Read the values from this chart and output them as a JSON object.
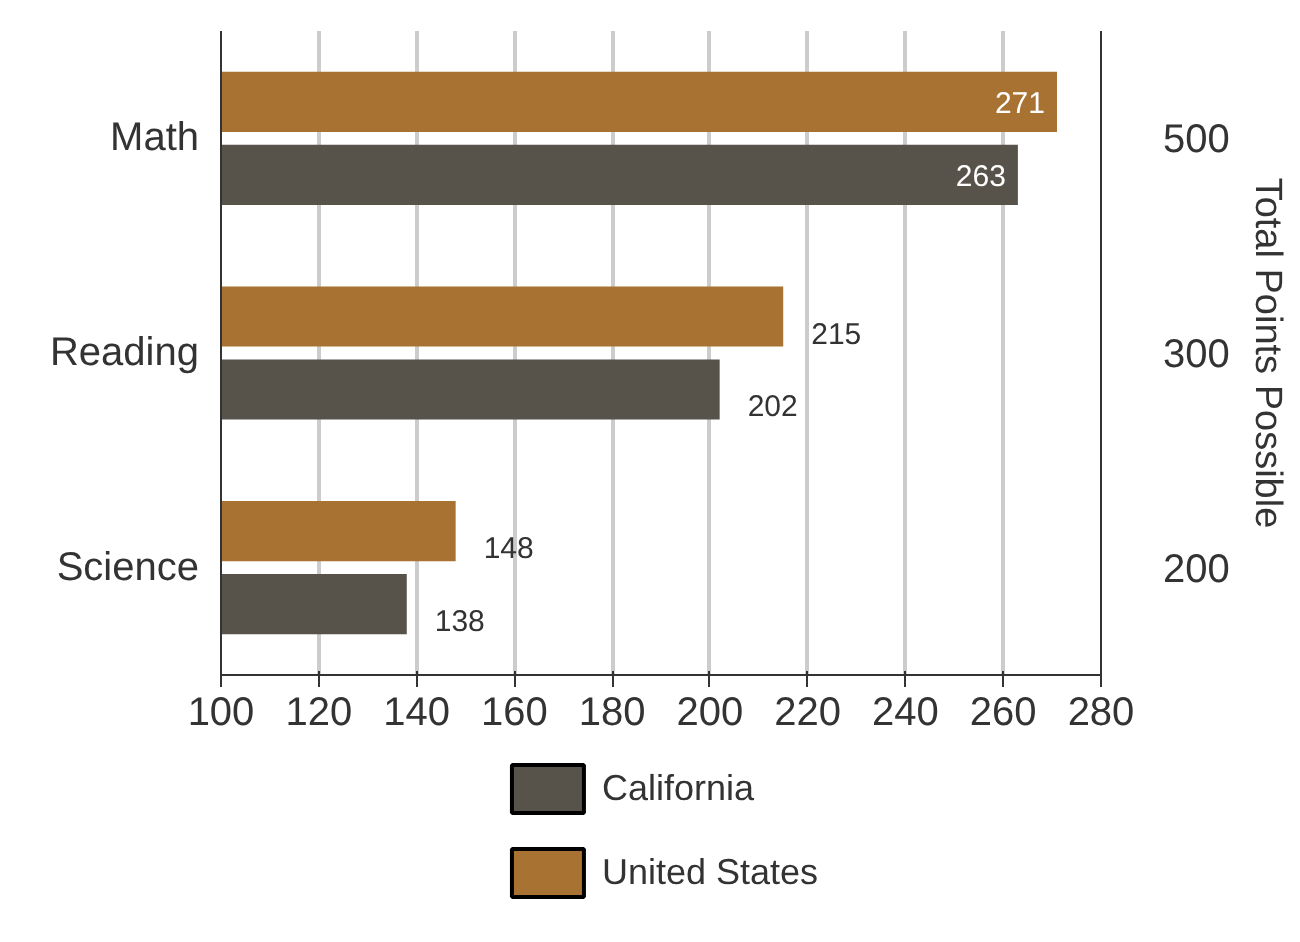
{
  "chart_data": {
    "type": "bar",
    "orientation": "horizontal",
    "categories": [
      "Math",
      "Reading",
      "Science"
    ],
    "series": [
      {
        "name": "California",
        "color": "#57524a",
        "values": [
          263,
          202,
          138
        ]
      },
      {
        "name": "United States",
        "color": "#a87332",
        "values": [
          271,
          215,
          148
        ]
      }
    ],
    "xlim": [
      100,
      280
    ],
    "xticks": [
      100,
      120,
      140,
      160,
      180,
      200,
      220,
      240,
      260,
      280
    ],
    "y2label": "Total Points Possible",
    "annotations": [
      "500",
      "300",
      "200"
    ],
    "data_labels": true,
    "grid": "x",
    "legend": "bottom"
  }
}
